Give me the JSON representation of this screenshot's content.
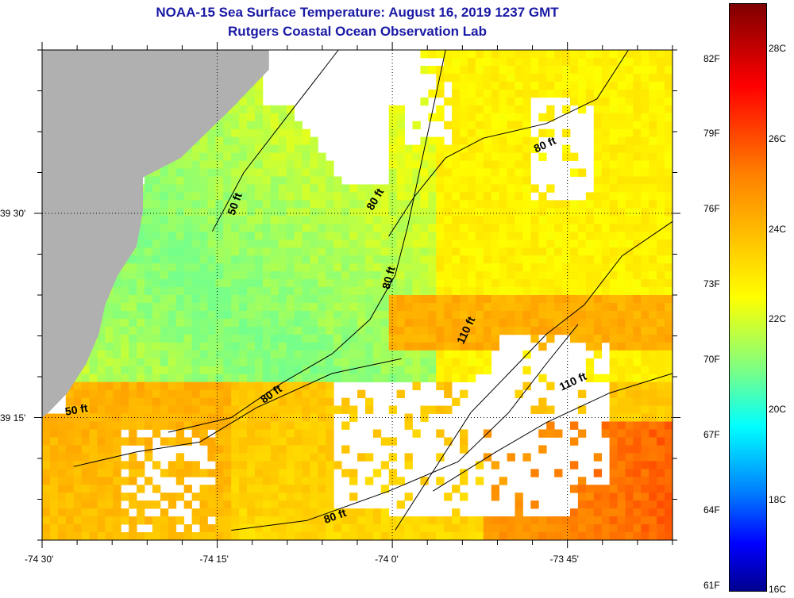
{
  "title": {
    "line1": "NOAA-15 Sea Surface Temperature:  August 16, 2019 1237 GMT",
    "line2": "Rutgers Coastal Ocean Observation Lab"
  },
  "colors": {
    "title": "#1a1aa6",
    "land": "#b0b0b0",
    "no_data": "#ffffff"
  },
  "chart_data": {
    "type": "heatmap",
    "title": "NOAA-15 Sea Surface Temperature:  August 16, 2019 1237 GMT",
    "subtitle": "Rutgers Coastal Ocean Observation Lab",
    "x_ticks": [
      "-74 30'",
      "-74 15'",
      "-74 0'",
      "-73 45'"
    ],
    "y_ticks": [
      "39 30'",
      "39 15'"
    ],
    "xlim": [
      -74.5,
      -73.6
    ],
    "ylim": [
      39.1,
      39.7
    ],
    "x_tick_values": [
      -74.5,
      -74.25,
      -74.0,
      -73.75
    ],
    "y_tick_values": [
      39.5,
      39.25
    ],
    "colorbar": {
      "min_c": 16,
      "max_c": 29,
      "c_labels": [
        "28C",
        "26C",
        "24C",
        "22C",
        "20C",
        "18C",
        "16C"
      ],
      "c_values": [
        28,
        26,
        24,
        22,
        20,
        18,
        16
      ],
      "f_labels": [
        "82F",
        "79F",
        "76F",
        "73F",
        "70F",
        "67F",
        "64F",
        "61F"
      ],
      "f_values": [
        82,
        79,
        76,
        73,
        70,
        67,
        64,
        61
      ]
    },
    "contour_labels": [
      {
        "text": "50 ft",
        "x": -74.22,
        "y": 39.51,
        "angle": -70
      },
      {
        "text": "50 ft",
        "x": -74.45,
        "y": 39.255,
        "angle": -10
      },
      {
        "text": "80 ft",
        "x": -74.17,
        "y": 39.275,
        "angle": -35
      },
      {
        "text": "80 ft",
        "x": -74.02,
        "y": 39.515,
        "angle": -60
      },
      {
        "text": "80 ft",
        "x": -74.0,
        "y": 39.42,
        "angle": -75
      },
      {
        "text": "80 ft",
        "x": -73.78,
        "y": 39.58,
        "angle": -25
      },
      {
        "text": "80 ft",
        "x": -74.08,
        "y": 39.125,
        "angle": -20
      },
      {
        "text": "110 ft",
        "x": -73.89,
        "y": 39.355,
        "angle": -65
      },
      {
        "text": "110 ft",
        "x": -73.74,
        "y": 39.29,
        "angle": -25
      }
    ]
  }
}
